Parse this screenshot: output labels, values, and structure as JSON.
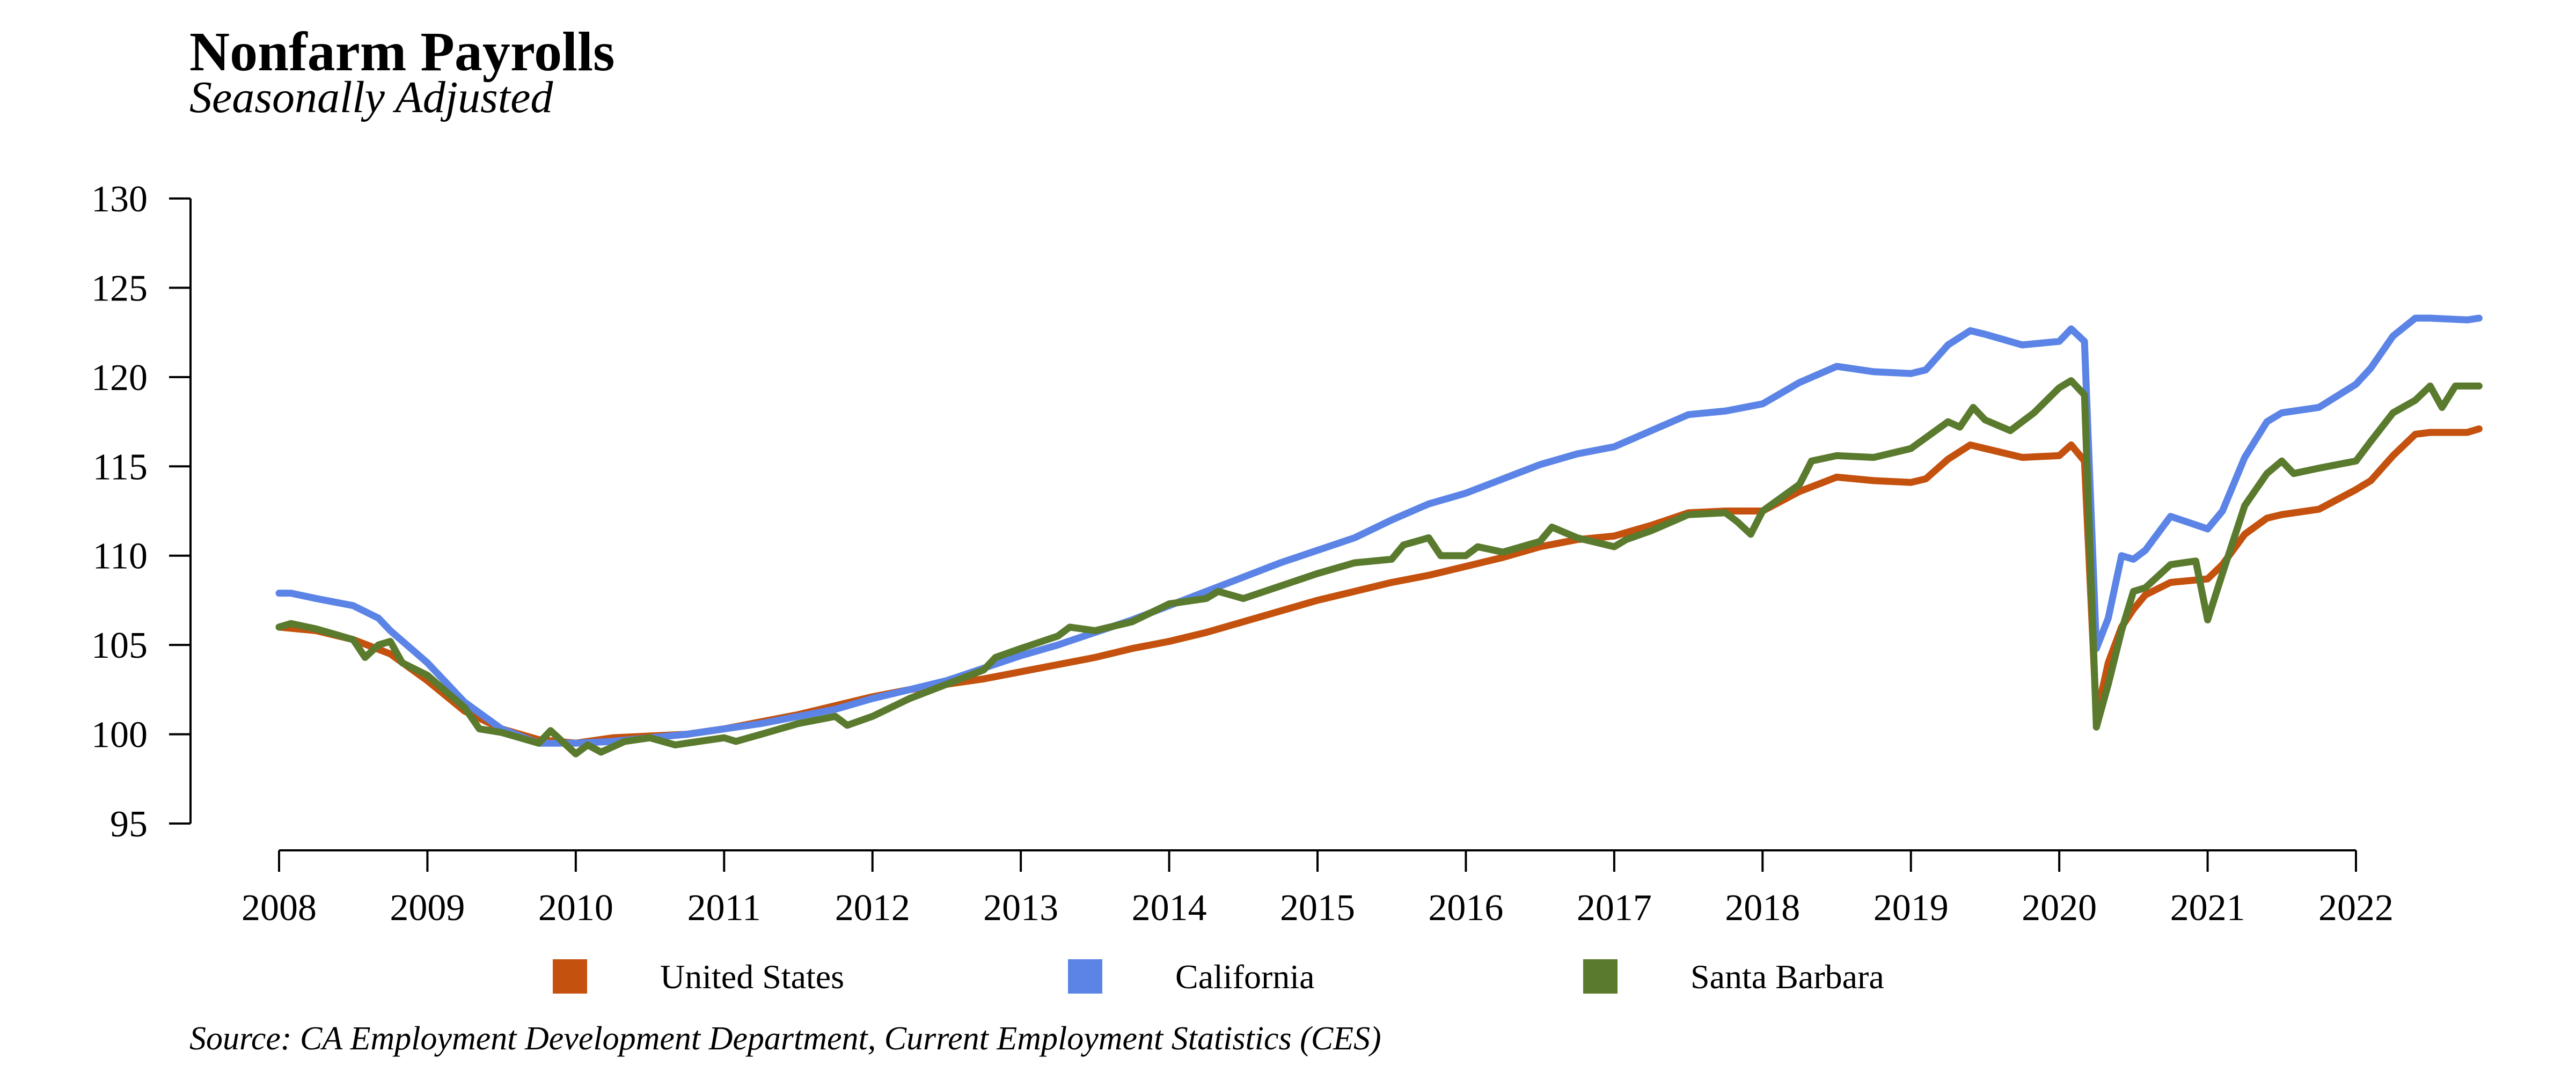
{
  "chart_data": {
    "type": "line",
    "title": "Nonfarm Payrolls",
    "subtitle": "Seasonally Adjusted",
    "source": "Source: CA Employment Development Department, Current Employment Statistics (CES)",
    "xlabel": "",
    "ylabel": "",
    "xlim": [
      2008,
      2022.9
    ],
    "ylim": [
      95,
      130
    ],
    "x_ticks": [
      2008,
      2009,
      2010,
      2011,
      2012,
      2013,
      2014,
      2015,
      2016,
      2017,
      2018,
      2019,
      2020,
      2021,
      2022
    ],
    "y_ticks": [
      95,
      100,
      105,
      110,
      115,
      120,
      125,
      130
    ],
    "grid": false,
    "legend_position": "bottom",
    "series": [
      {
        "name": "United States",
        "color": "#C4510E",
        "points": [
          [
            2008.0,
            106.0
          ],
          [
            2008.25,
            105.8
          ],
          [
            2008.5,
            105.3
          ],
          [
            2008.75,
            104.5
          ],
          [
            2009.0,
            103.0
          ],
          [
            2009.25,
            101.3
          ],
          [
            2009.5,
            100.3
          ],
          [
            2009.75,
            99.7
          ],
          [
            2010.0,
            99.5
          ],
          [
            2010.25,
            99.8
          ],
          [
            2010.5,
            99.9
          ],
          [
            2010.75,
            100.0
          ],
          [
            2011.0,
            100.3
          ],
          [
            2011.25,
            100.7
          ],
          [
            2011.5,
            101.1
          ],
          [
            2011.75,
            101.6
          ],
          [
            2012.0,
            102.1
          ],
          [
            2012.25,
            102.5
          ],
          [
            2012.5,
            102.8
          ],
          [
            2012.75,
            103.1
          ],
          [
            2013.0,
            103.5
          ],
          [
            2013.25,
            103.9
          ],
          [
            2013.5,
            104.3
          ],
          [
            2013.75,
            104.8
          ],
          [
            2014.0,
            105.2
          ],
          [
            2014.25,
            105.7
          ],
          [
            2014.5,
            106.3
          ],
          [
            2014.75,
            106.9
          ],
          [
            2015.0,
            107.5
          ],
          [
            2015.25,
            108.0
          ],
          [
            2015.5,
            108.5
          ],
          [
            2015.75,
            108.9
          ],
          [
            2016.0,
            109.4
          ],
          [
            2016.25,
            109.9
          ],
          [
            2016.5,
            110.5
          ],
          [
            2016.75,
            110.9
          ],
          [
            2017.0,
            111.1
          ],
          [
            2017.25,
            111.7
          ],
          [
            2017.5,
            112.4
          ],
          [
            2017.75,
            112.5
          ],
          [
            2018.0,
            112.5
          ],
          [
            2018.25,
            113.6
          ],
          [
            2018.5,
            114.4
          ],
          [
            2018.75,
            114.2
          ],
          [
            2019.0,
            114.1
          ],
          [
            2019.1,
            114.3
          ],
          [
            2019.25,
            115.4
          ],
          [
            2019.4,
            116.2
          ],
          [
            2019.5,
            116.0
          ],
          [
            2019.75,
            115.5
          ],
          [
            2020.0,
            115.6
          ],
          [
            2020.08,
            116.2
          ],
          [
            2020.17,
            115.3
          ],
          [
            2020.25,
            101.0
          ],
          [
            2020.33,
            104.0
          ],
          [
            2020.42,
            106.0
          ],
          [
            2020.5,
            107.0
          ],
          [
            2020.58,
            107.8
          ],
          [
            2020.75,
            108.5
          ],
          [
            2021.0,
            108.7
          ],
          [
            2021.1,
            109.5
          ],
          [
            2021.25,
            111.2
          ],
          [
            2021.4,
            112.1
          ],
          [
            2021.5,
            112.3
          ],
          [
            2021.75,
            112.6
          ],
          [
            2022.0,
            113.7
          ],
          [
            2022.1,
            114.2
          ],
          [
            2022.25,
            115.6
          ],
          [
            2022.4,
            116.8
          ],
          [
            2022.5,
            116.9
          ],
          [
            2022.75,
            116.9
          ],
          [
            2022.83,
            117.1
          ]
        ]
      },
      {
        "name": "California",
        "color": "#5B84E6",
        "points": [
          [
            2008.0,
            107.9
          ],
          [
            2008.08,
            107.9
          ],
          [
            2008.25,
            107.6
          ],
          [
            2008.5,
            107.2
          ],
          [
            2008.67,
            106.5
          ],
          [
            2008.75,
            105.8
          ],
          [
            2009.0,
            104.0
          ],
          [
            2009.25,
            101.8
          ],
          [
            2009.5,
            100.3
          ],
          [
            2009.75,
            99.5
          ],
          [
            2010.0,
            99.5
          ],
          [
            2010.25,
            99.6
          ],
          [
            2010.5,
            99.8
          ],
          [
            2010.75,
            100.0
          ],
          [
            2011.0,
            100.3
          ],
          [
            2011.25,
            100.6
          ],
          [
            2011.5,
            101.0
          ],
          [
            2011.75,
            101.4
          ],
          [
            2012.0,
            102.0
          ],
          [
            2012.25,
            102.5
          ],
          [
            2012.5,
            103.0
          ],
          [
            2012.75,
            103.7
          ],
          [
            2013.0,
            104.4
          ],
          [
            2013.25,
            105.0
          ],
          [
            2013.5,
            105.7
          ],
          [
            2013.75,
            106.4
          ],
          [
            2014.0,
            107.2
          ],
          [
            2014.25,
            108.0
          ],
          [
            2014.5,
            108.8
          ],
          [
            2014.75,
            109.6
          ],
          [
            2015.0,
            110.3
          ],
          [
            2015.25,
            111.0
          ],
          [
            2015.5,
            112.0
          ],
          [
            2015.75,
            112.9
          ],
          [
            2016.0,
            113.5
          ],
          [
            2016.25,
            114.3
          ],
          [
            2016.5,
            115.1
          ],
          [
            2016.75,
            115.7
          ],
          [
            2017.0,
            116.1
          ],
          [
            2017.25,
            117.0
          ],
          [
            2017.5,
            117.9
          ],
          [
            2017.75,
            118.1
          ],
          [
            2018.0,
            118.5
          ],
          [
            2018.25,
            119.7
          ],
          [
            2018.5,
            120.6
          ],
          [
            2018.75,
            120.3
          ],
          [
            2019.0,
            120.2
          ],
          [
            2019.1,
            120.4
          ],
          [
            2019.25,
            121.8
          ],
          [
            2019.4,
            122.6
          ],
          [
            2019.5,
            122.4
          ],
          [
            2019.75,
            121.8
          ],
          [
            2020.0,
            122.0
          ],
          [
            2020.08,
            122.7
          ],
          [
            2020.17,
            122.0
          ],
          [
            2020.25,
            104.8
          ],
          [
            2020.33,
            106.5
          ],
          [
            2020.42,
            110.0
          ],
          [
            2020.5,
            109.8
          ],
          [
            2020.58,
            110.3
          ],
          [
            2020.75,
            112.2
          ],
          [
            2021.0,
            111.5
          ],
          [
            2021.1,
            112.5
          ],
          [
            2021.25,
            115.5
          ],
          [
            2021.4,
            117.5
          ],
          [
            2021.5,
            118.0
          ],
          [
            2021.75,
            118.3
          ],
          [
            2022.0,
            119.6
          ],
          [
            2022.1,
            120.5
          ],
          [
            2022.25,
            122.3
          ],
          [
            2022.4,
            123.3
          ],
          [
            2022.5,
            123.3
          ],
          [
            2022.75,
            123.2
          ],
          [
            2022.83,
            123.3
          ]
        ]
      },
      {
        "name": "Santa Barbara",
        "color": "#5A7A2E",
        "points": [
          [
            2008.0,
            106.0
          ],
          [
            2008.08,
            106.2
          ],
          [
            2008.25,
            105.9
          ],
          [
            2008.5,
            105.3
          ],
          [
            2008.58,
            104.3
          ],
          [
            2008.67,
            105.0
          ],
          [
            2008.75,
            105.2
          ],
          [
            2008.83,
            104.0
          ],
          [
            2009.0,
            103.3
          ],
          [
            2009.25,
            101.5
          ],
          [
            2009.35,
            100.3
          ],
          [
            2009.5,
            100.1
          ],
          [
            2009.75,
            99.5
          ],
          [
            2009.83,
            100.2
          ],
          [
            2010.0,
            98.9
          ],
          [
            2010.08,
            99.4
          ],
          [
            2010.17,
            99.0
          ],
          [
            2010.33,
            99.6
          ],
          [
            2010.5,
            99.8
          ],
          [
            2010.67,
            99.4
          ],
          [
            2010.83,
            99.6
          ],
          [
            2011.0,
            99.8
          ],
          [
            2011.08,
            99.6
          ],
          [
            2011.25,
            100.0
          ],
          [
            2011.5,
            100.6
          ],
          [
            2011.75,
            101.0
          ],
          [
            2011.83,
            100.5
          ],
          [
            2012.0,
            101.0
          ],
          [
            2012.25,
            102.0
          ],
          [
            2012.5,
            102.8
          ],
          [
            2012.75,
            103.6
          ],
          [
            2012.83,
            104.3
          ],
          [
            2013.0,
            104.8
          ],
          [
            2013.25,
            105.5
          ],
          [
            2013.33,
            106.0
          ],
          [
            2013.5,
            105.8
          ],
          [
            2013.75,
            106.3
          ],
          [
            2014.0,
            107.3
          ],
          [
            2014.25,
            107.6
          ],
          [
            2014.33,
            108.0
          ],
          [
            2014.5,
            107.6
          ],
          [
            2014.75,
            108.3
          ],
          [
            2015.0,
            109.0
          ],
          [
            2015.25,
            109.6
          ],
          [
            2015.5,
            109.8
          ],
          [
            2015.58,
            110.6
          ],
          [
            2015.75,
            111.0
          ],
          [
            2015.83,
            110.0
          ],
          [
            2016.0,
            110.0
          ],
          [
            2016.08,
            110.5
          ],
          [
            2016.25,
            110.2
          ],
          [
            2016.5,
            110.8
          ],
          [
            2016.58,
            111.6
          ],
          [
            2016.75,
            111.0
          ],
          [
            2017.0,
            110.5
          ],
          [
            2017.08,
            110.9
          ],
          [
            2017.25,
            111.4
          ],
          [
            2017.5,
            112.3
          ],
          [
            2017.75,
            112.4
          ],
          [
            2017.83,
            111.9
          ],
          [
            2017.92,
            111.2
          ],
          [
            2018.0,
            112.5
          ],
          [
            2018.25,
            114.0
          ],
          [
            2018.33,
            115.3
          ],
          [
            2018.5,
            115.6
          ],
          [
            2018.75,
            115.5
          ],
          [
            2019.0,
            116.0
          ],
          [
            2019.25,
            117.5
          ],
          [
            2019.33,
            117.2
          ],
          [
            2019.42,
            118.3
          ],
          [
            2019.5,
            117.6
          ],
          [
            2019.67,
            117.0
          ],
          [
            2019.83,
            118.0
          ],
          [
            2020.0,
            119.4
          ],
          [
            2020.08,
            119.8
          ],
          [
            2020.17,
            119.0
          ],
          [
            2020.25,
            100.4
          ],
          [
            2020.33,
            102.8
          ],
          [
            2020.42,
            105.8
          ],
          [
            2020.5,
            108.0
          ],
          [
            2020.58,
            108.2
          ],
          [
            2020.75,
            109.5
          ],
          [
            2020.92,
            109.7
          ],
          [
            2021.0,
            106.4
          ],
          [
            2021.1,
            109.0
          ],
          [
            2021.25,
            112.8
          ],
          [
            2021.4,
            114.6
          ],
          [
            2021.5,
            115.3
          ],
          [
            2021.58,
            114.6
          ],
          [
            2021.75,
            114.9
          ],
          [
            2022.0,
            115.3
          ],
          [
            2022.1,
            116.4
          ],
          [
            2022.25,
            118.0
          ],
          [
            2022.4,
            118.7
          ],
          [
            2022.5,
            119.5
          ],
          [
            2022.58,
            118.3
          ],
          [
            2022.67,
            119.5
          ],
          [
            2022.83,
            119.5
          ]
        ]
      }
    ]
  }
}
